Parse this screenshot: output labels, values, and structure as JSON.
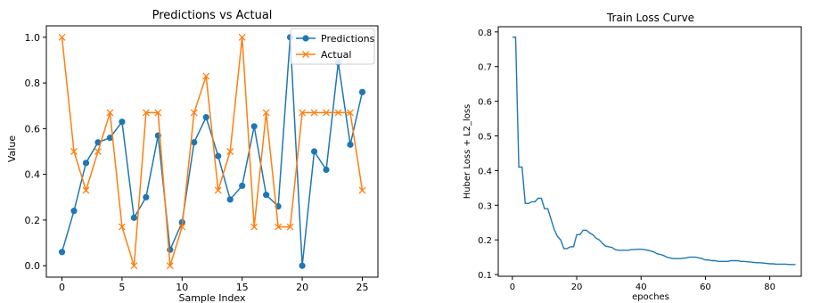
{
  "chart_data": [
    {
      "type": "line",
      "title": "Predictions vs Actual",
      "xlabel": "Sample Index",
      "ylabel": "Value",
      "xlim": [
        -1.3,
        26.3
      ],
      "ylim": [
        -0.05,
        1.05
      ],
      "xticks": [
        0,
        5,
        10,
        15,
        20,
        25
      ],
      "yticks": [
        0.0,
        0.2,
        0.4,
        0.6,
        0.8,
        1.0
      ],
      "legend_position": "top-right",
      "series": [
        {
          "name": "Predictions",
          "color": "#1f77b4",
          "marker": "circle",
          "x": [
            0,
            1,
            2,
            3,
            4,
            5,
            6,
            7,
            8,
            9,
            10,
            11,
            12,
            13,
            14,
            15,
            16,
            17,
            18,
            19,
            20,
            21,
            22,
            23,
            24,
            25
          ],
          "values": [
            0.06,
            0.24,
            0.45,
            0.54,
            0.56,
            0.63,
            0.21,
            0.3,
            0.57,
            0.07,
            0.19,
            0.54,
            0.65,
            0.48,
            0.29,
            0.35,
            0.61,
            0.31,
            0.26,
            1.0,
            0.0,
            0.5,
            0.42,
            0.89,
            0.53,
            0.76
          ]
        },
        {
          "name": "Actual",
          "color": "#ff7f0e",
          "marker": "x",
          "x": [
            0,
            1,
            2,
            3,
            4,
            5,
            6,
            7,
            8,
            9,
            10,
            11,
            12,
            13,
            14,
            15,
            16,
            17,
            18,
            19,
            20,
            21,
            22,
            23,
            24,
            25
          ],
          "values": [
            1.0,
            0.5,
            0.33,
            0.5,
            0.67,
            0.17,
            0.0,
            0.67,
            0.67,
            0.0,
            0.17,
            0.67,
            0.83,
            0.33,
            0.5,
            1.0,
            0.17,
            0.67,
            0.17,
            0.17,
            0.67,
            0.67,
            0.67,
            0.67,
            0.67,
            0.33
          ]
        }
      ]
    },
    {
      "type": "line",
      "title": "Train Loss Curve",
      "xlabel": "epoches",
      "ylabel": "Huber Loss + L2_loss",
      "xlim": [
        -4.4,
        89.8
      ],
      "ylim": [
        0.095,
        0.815
      ],
      "xticks": [
        0,
        20,
        40,
        60,
        80
      ],
      "yticks": [
        0.1,
        0.2,
        0.3,
        0.4,
        0.5,
        0.6,
        0.7,
        0.8
      ],
      "series": [
        {
          "color": "#1f77b4",
          "x": [
            0,
            1,
            2,
            3,
            4,
            5,
            6,
            7,
            8,
            9,
            10,
            11,
            12,
            13,
            14,
            15,
            16,
            17,
            18,
            19,
            20,
            21,
            22,
            23,
            24,
            25,
            26,
            27,
            28,
            29,
            30,
            31,
            32,
            33,
            34,
            35,
            36,
            37,
            38,
            39,
            40,
            41,
            42,
            43,
            44,
            45,
            46,
            47,
            48,
            49,
            50,
            51,
            52,
            53,
            54,
            55,
            56,
            57,
            58,
            59,
            60,
            61,
            62,
            63,
            64,
            65,
            66,
            67,
            68,
            69,
            70,
            71,
            72,
            73,
            74,
            75,
            76,
            77,
            78,
            79,
            80,
            81,
            82,
            83,
            84,
            85,
            86,
            87,
            88
          ],
          "values": [
            0.785,
            0.785,
            0.41,
            0.41,
            0.305,
            0.305,
            0.31,
            0.31,
            0.32,
            0.32,
            0.29,
            0.29,
            0.26,
            0.23,
            0.21,
            0.2,
            0.175,
            0.175,
            0.18,
            0.18,
            0.215,
            0.215,
            0.228,
            0.228,
            0.22,
            0.215,
            0.205,
            0.2,
            0.19,
            0.182,
            0.18,
            0.178,
            0.172,
            0.17,
            0.17,
            0.17,
            0.17,
            0.172,
            0.172,
            0.173,
            0.173,
            0.172,
            0.17,
            0.168,
            0.165,
            0.16,
            0.158,
            0.155,
            0.15,
            0.148,
            0.146,
            0.146,
            0.146,
            0.147,
            0.148,
            0.15,
            0.15,
            0.15,
            0.148,
            0.146,
            0.142,
            0.142,
            0.14,
            0.14,
            0.138,
            0.138,
            0.138,
            0.138,
            0.14,
            0.14,
            0.14,
            0.138,
            0.138,
            0.137,
            0.136,
            0.135,
            0.134,
            0.134,
            0.133,
            0.132,
            0.131,
            0.131,
            0.13,
            0.13,
            0.13,
            0.13,
            0.129,
            0.129,
            0.129
          ]
        }
      ]
    }
  ]
}
